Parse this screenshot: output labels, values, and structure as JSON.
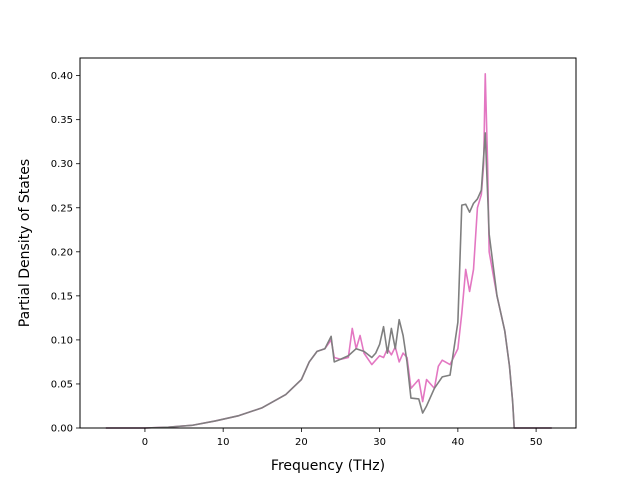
{
  "chart_data": {
    "type": "line",
    "title": "",
    "xlabel": "Frequency (THz)",
    "ylabel": "Partial Density of States",
    "xlim": [
      -8.3,
      55.1
    ],
    "ylim": [
      0,
      0.42
    ],
    "xticks": [
      0,
      10,
      20,
      30,
      40,
      50
    ],
    "yticks": [
      0.0,
      0.05,
      0.1,
      0.15,
      0.2,
      0.25,
      0.3,
      0.35,
      0.4
    ],
    "xtick_labels": [
      "0",
      "10",
      "20",
      "30",
      "40",
      "50"
    ],
    "ytick_labels": [
      "0.00",
      "0.05",
      "0.10",
      "0.15",
      "0.20",
      "0.25",
      "0.30",
      "0.35",
      "0.40"
    ],
    "grid": false,
    "legend": "none",
    "series": [
      {
        "color": "#e377c2",
        "x": [
          -5,
          0,
          3,
          6,
          9,
          12,
          15,
          18,
          20,
          21,
          22,
          23,
          23.8,
          24.2,
          25,
          26,
          26.5,
          27,
          27.5,
          28,
          29,
          30,
          30.5,
          31,
          31.5,
          32,
          32.5,
          33,
          33.5,
          34,
          35,
          35.5,
          36,
          37,
          37.5,
          38,
          39,
          40,
          40.5,
          41,
          41.5,
          42,
          42.5,
          43,
          43.3,
          43.5,
          43.8,
          44,
          45,
          46,
          46.6,
          47,
          47.2,
          52
        ],
        "y": [
          0,
          0,
          0.001,
          0.003,
          0.008,
          0.014,
          0.023,
          0.038,
          0.055,
          0.075,
          0.087,
          0.09,
          0.1,
          0.08,
          0.078,
          0.08,
          0.113,
          0.09,
          0.105,
          0.085,
          0.072,
          0.082,
          0.08,
          0.09,
          0.083,
          0.092,
          0.075,
          0.085,
          0.08,
          0.045,
          0.055,
          0.03,
          0.055,
          0.045,
          0.07,
          0.077,
          0.072,
          0.09,
          0.13,
          0.18,
          0.155,
          0.18,
          0.25,
          0.265,
          0.3,
          0.402,
          0.3,
          0.2,
          0.15,
          0.11,
          0.07,
          0.03,
          0,
          0
        ]
      },
      {
        "color": "#7f7f7f",
        "x": [
          -5,
          0,
          3,
          6,
          9,
          12,
          15,
          18,
          20,
          21,
          22,
          23,
          23.8,
          24.2,
          25,
          26,
          27,
          28,
          29,
          29.5,
          30,
          30.5,
          31,
          31.5,
          32,
          32.5,
          33,
          33.5,
          34,
          35,
          35.5,
          36,
          37,
          38,
          39,
          40,
          40.5,
          41,
          41.5,
          42,
          42.5,
          43,
          43.5,
          44,
          45,
          46,
          46.6,
          47,
          47.2,
          52
        ],
        "y": [
          0,
          0,
          0.001,
          0.003,
          0.008,
          0.014,
          0.023,
          0.038,
          0.055,
          0.075,
          0.087,
          0.09,
          0.104,
          0.075,
          0.078,
          0.082,
          0.09,
          0.087,
          0.08,
          0.085,
          0.095,
          0.115,
          0.085,
          0.113,
          0.09,
          0.123,
          0.105,
          0.075,
          0.034,
          0.033,
          0.017,
          0.025,
          0.045,
          0.058,
          0.06,
          0.12,
          0.253,
          0.254,
          0.245,
          0.255,
          0.26,
          0.27,
          0.335,
          0.22,
          0.15,
          0.11,
          0.07,
          0.03,
          0,
          0
        ]
      }
    ]
  }
}
